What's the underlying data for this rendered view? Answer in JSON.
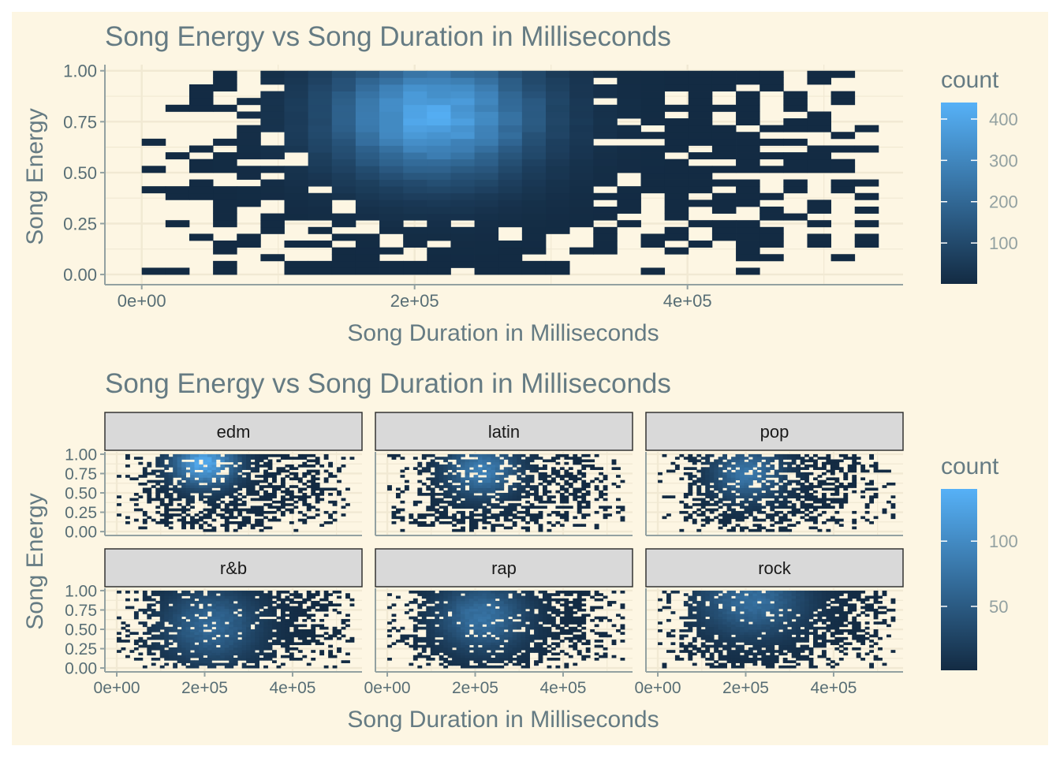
{
  "chart_data": [
    {
      "type": "heatmap",
      "title": "Song Energy vs Song Duration in Milliseconds",
      "xlabel": "Song Duration in Milliseconds",
      "ylabel": "Song Energy",
      "xlim": [
        -27000,
        558000
      ],
      "ylim": [
        -0.05,
        1.03
      ],
      "x_ticks": [
        {
          "value": 0,
          "label": "0e+00"
        },
        {
          "value": 200000,
          "label": "2e+05"
        },
        {
          "value": 400000,
          "label": "4e+05"
        }
      ],
      "y_ticks": [
        {
          "value": 0.0,
          "label": "0.00"
        },
        {
          "value": 0.25,
          "label": "0.25"
        },
        {
          "value": 0.5,
          "label": "0.50"
        },
        {
          "value": 0.75,
          "label": "0.75"
        },
        {
          "value": 1.0,
          "label": "1.00"
        }
      ],
      "bins": {
        "x_min": 0,
        "x_max": 540000,
        "n_x": 31,
        "y_min": 0,
        "y_max": 1,
        "n_y": 30
      },
      "peak": {
        "x": 215000,
        "y": 0.78,
        "count": 420
      },
      "legend": {
        "title": "count",
        "min": 1,
        "max": 420,
        "ticks": [
          100,
          200,
          300,
          400
        ],
        "position": "right"
      },
      "grid": true
    },
    {
      "type": "heatmap",
      "title": "Song Energy vs Song Duration in Milliseconds",
      "xlabel": "Song Duration in Milliseconds",
      "ylabel": "Song Energy",
      "facets": [
        "edm",
        "latin",
        "pop",
        "r&b",
        "rap",
        "rock"
      ],
      "facet_layout": {
        "rows": 2,
        "cols": 3
      },
      "xlim": [
        -27000,
        558000
      ],
      "ylim": [
        -0.05,
        1.03
      ],
      "x_ticks": [
        {
          "value": 0,
          "label": "0e+00"
        },
        {
          "value": 200000,
          "label": "2e+05"
        },
        {
          "value": 400000,
          "label": "4e+05"
        }
      ],
      "y_ticks": [
        {
          "value": 0.0,
          "label": "0.00"
        },
        {
          "value": 0.25,
          "label": "0.25"
        },
        {
          "value": 0.5,
          "label": "0.50"
        },
        {
          "value": 0.75,
          "label": "0.75"
        },
        {
          "value": 1.0,
          "label": "1.00"
        }
      ],
      "bins": {
        "x_min": 0,
        "x_max": 540000,
        "n_x": 55,
        "y_min": 0,
        "y_max": 1,
        "n_y": 30
      },
      "facet_peaks": [
        {
          "facet": "edm",
          "x": 200000,
          "y": 0.88,
          "count": 140
        },
        {
          "facet": "latin",
          "x": 215000,
          "y": 0.79,
          "count": 95
        },
        {
          "facet": "pop",
          "x": 205000,
          "y": 0.75,
          "count": 85
        },
        {
          "facet": "r&b",
          "x": 215000,
          "y": 0.55,
          "count": 70
        },
        {
          "facet": "rap",
          "x": 215000,
          "y": 0.66,
          "count": 80
        },
        {
          "facet": "rock",
          "x": 215000,
          "y": 0.88,
          "count": 75
        }
      ],
      "legend": {
        "title": "count",
        "min": 1,
        "max": 140,
        "ticks": [
          50,
          100
        ],
        "position": "right"
      },
      "grid": true
    }
  ],
  "colors": {
    "background": "#fdf6e3",
    "grid": "#f1e9d3",
    "axis": "#93a1a1",
    "title": "#657b83",
    "tick_text": "#586e75",
    "strip_fill": "#d9d9d9",
    "strip_border": "#333333",
    "low": "#132b43",
    "high": "#56b1f7"
  }
}
